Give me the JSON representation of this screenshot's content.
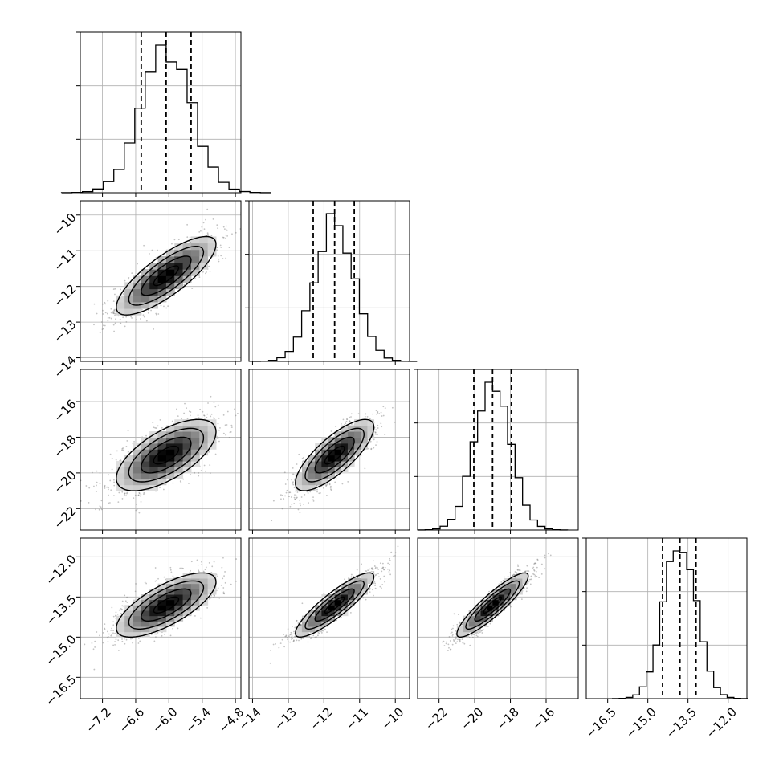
{
  "chart_data": {
    "type": "corner",
    "title": "",
    "grid": true,
    "parameters": [
      {
        "index": 0,
        "median": -6.05,
        "sigma": 0.45,
        "q16": -6.5,
        "q84": -5.6,
        "range": [
          -7.6,
          -4.7
        ],
        "ticks": [
          -7.2,
          -6.6,
          -6.0,
          -5.4,
          -4.8
        ],
        "tick_labels": [
          "−7.2",
          "−6.6",
          "−6.0",
          "−5.4",
          "−4.8"
        ]
      },
      {
        "index": 1,
        "median": -11.7,
        "sigma": 0.55,
        "q16": -12.3,
        "q84": -11.15,
        "range": [
          -14.1,
          -9.6
        ],
        "ticks": [
          -14,
          -13,
          -12,
          -11,
          -10
        ],
        "tick_labels": [
          "−14",
          "−13",
          "−12",
          "−11",
          "−10"
        ]
      },
      {
        "index": 2,
        "median": -19.0,
        "sigma": 1.0,
        "q16": -20.05,
        "q84": -17.95,
        "range": [
          -23.2,
          -14.2
        ],
        "ticks": [
          -22,
          -20,
          -18,
          -16
        ],
        "tick_labels": [
          "−22",
          "−20",
          "−18",
          "−16"
        ]
      },
      {
        "index": 3,
        "median": -13.8,
        "sigma": 0.6,
        "q16": -14.45,
        "q84": -13.2,
        "range": [
          -17.3,
          -11.3
        ],
        "ticks": [
          -16.5,
          -15.0,
          -13.5,
          -12.0
        ],
        "tick_labels": [
          "−16.5",
          "−15.0",
          "−13.5",
          "−12.0"
        ]
      }
    ],
    "correlation": [
      [
        1.0,
        0.8,
        0.65,
        0.72
      ],
      [
        0.8,
        1.0,
        0.78,
        0.88
      ],
      [
        0.65,
        0.78,
        1.0,
        0.9
      ],
      [
        0.72,
        0.88,
        0.9,
        1.0
      ]
    ],
    "hist_bins": 20,
    "contour_levels": [
      0.5,
      1.0,
      1.5,
      2.0
    ]
  }
}
